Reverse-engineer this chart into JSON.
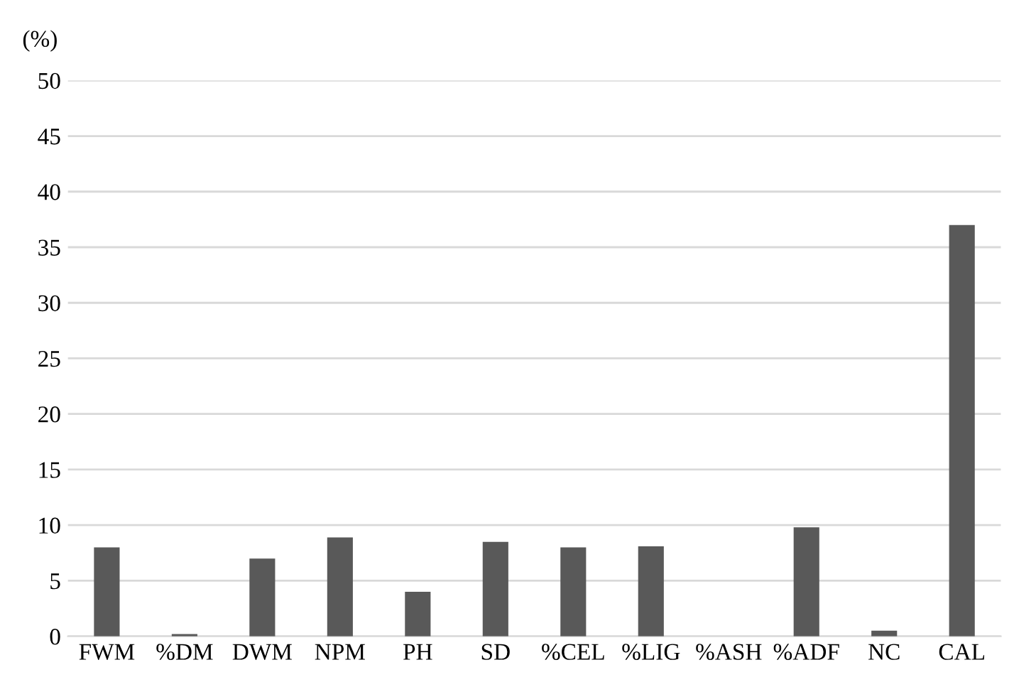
{
  "chart_data": {
    "type": "bar",
    "ylabel": "(%)",
    "categories": [
      "FWM",
      "%DM",
      "DWM",
      "NPM",
      "PH",
      "SD",
      "%CEL",
      "%LIG",
      "%ASH",
      "%ADF",
      "NC",
      "CAL"
    ],
    "values": [
      8,
      0.2,
      7,
      8.9,
      4,
      8.5,
      8,
      8.1,
      0,
      9.8,
      0.5,
      37
    ],
    "color": "#595959",
    "ylim": [
      0,
      50
    ],
    "yticks": [
      0,
      5,
      10,
      15,
      20,
      25,
      30,
      35,
      40,
      45,
      50
    ],
    "grid": "y",
    "legend": false
  }
}
